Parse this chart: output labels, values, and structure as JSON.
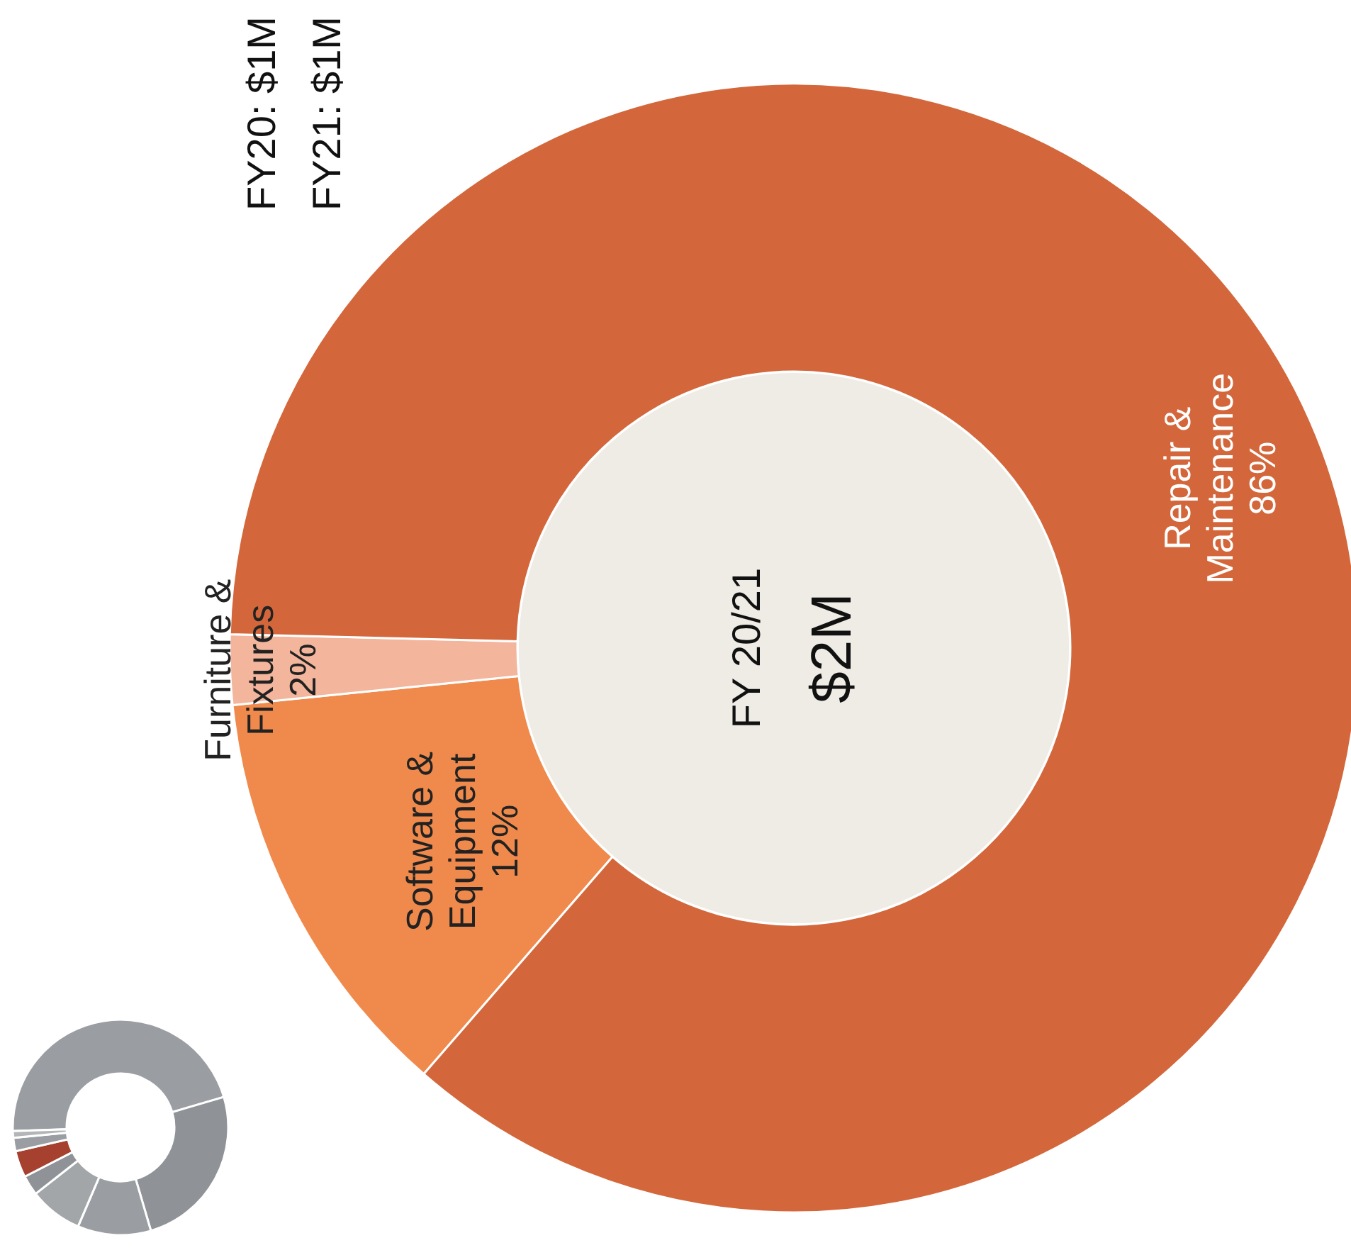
{
  "chart_data": [
    {
      "type": "donut",
      "categories": [
        "Software & Equipment",
        "Furniture & Fixtures",
        "Repair & Maintenance"
      ],
      "values": [
        12,
        2,
        86
      ],
      "colors": [
        "#f08a4c",
        "#f3b59c",
        "#d3673b"
      ],
      "value_labels": [
        "12%",
        "2%",
        "86%"
      ],
      "annotations": [
        "FY 20/21",
        "$2M",
        "FY20: $1M",
        "FY21: $1M"
      ]
    },
    {
      "type": "donut",
      "categories": [
        null,
        null,
        null,
        null,
        null,
        null,
        null,
        null
      ],
      "values": [
        46,
        25,
        11,
        8,
        3,
        4,
        2,
        1
      ],
      "colors": [
        "#9a9ea2",
        "#8f9397",
        "#9a9ea2",
        "#a3a6a9",
        "#8f9397",
        "#a5412e",
        "#9a9ea2",
        "#b3b6b8"
      ]
    }
  ]
}
